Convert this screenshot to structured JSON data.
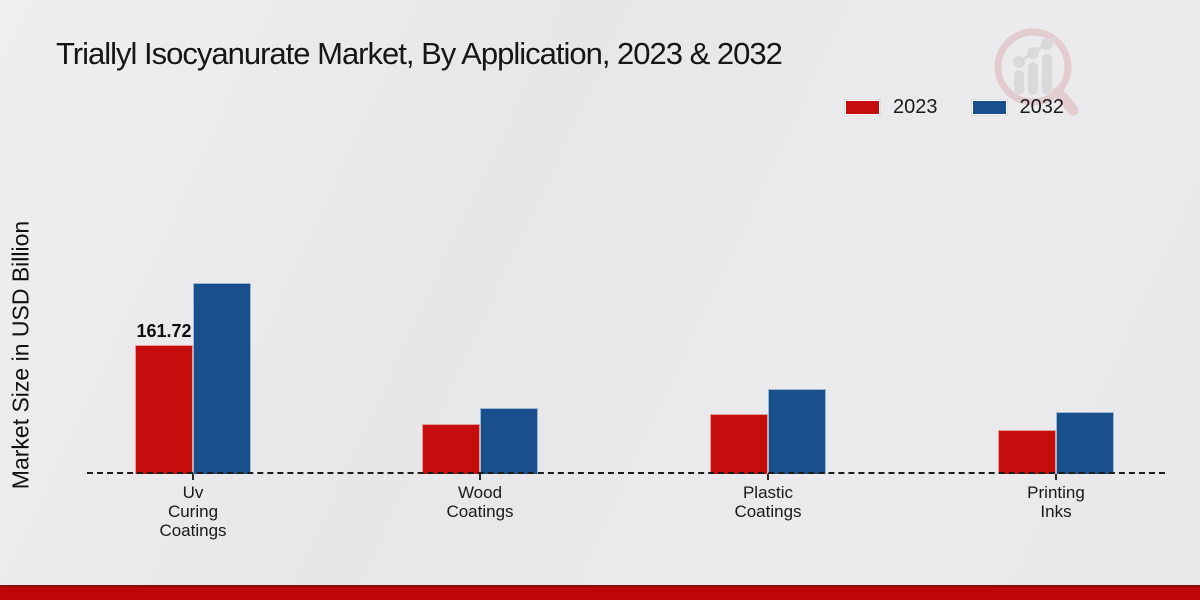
{
  "header": {
    "title": "Triallyl Isocyanurate Market, By Application, 2023 & 2032"
  },
  "legend": {
    "items": [
      {
        "label": "2023",
        "color": "#c60d0d"
      },
      {
        "label": "2032",
        "color": "#184f8c"
      }
    ]
  },
  "chart_data": {
    "type": "bar",
    "title": "Triallyl Isocyanurate Market, By Application, 2023 & 2032",
    "xlabel": "",
    "ylabel": "Market Size in USD Billion",
    "categories": [
      "Uv Curing Coatings",
      "Wood Coatings",
      "Plastic Coatings",
      "Printing Inks"
    ],
    "category_lines": [
      [
        "Uv",
        "Curing",
        "Coatings"
      ],
      [
        "Wood",
        "Coatings"
      ],
      [
        "Plastic",
        "Coatings"
      ],
      [
        "Printing",
        "Inks"
      ]
    ],
    "series": [
      {
        "name": "2023",
        "color": "#c60d0d",
        "values": [
          161.72,
          62.7,
          75.2,
          55.2
        ]
      },
      {
        "name": "2032",
        "color": "#184f8c",
        "values": [
          239.5,
          82.7,
          106.6,
          77.7
        ]
      }
    ],
    "data_labels": [
      {
        "series_index": 0,
        "category_index": 0,
        "text": "161.72"
      }
    ],
    "ylim": [
      0,
      260
    ],
    "grid": false,
    "legend_position": "top-right",
    "axis_baseline": "dashed",
    "unit": "USD Billion"
  },
  "footer": {
    "bar_color": "#bf0606",
    "bar_edge_color": "#8a0a05"
  },
  "watermark": {
    "icon": "magnifier-bar-chart-logo"
  }
}
